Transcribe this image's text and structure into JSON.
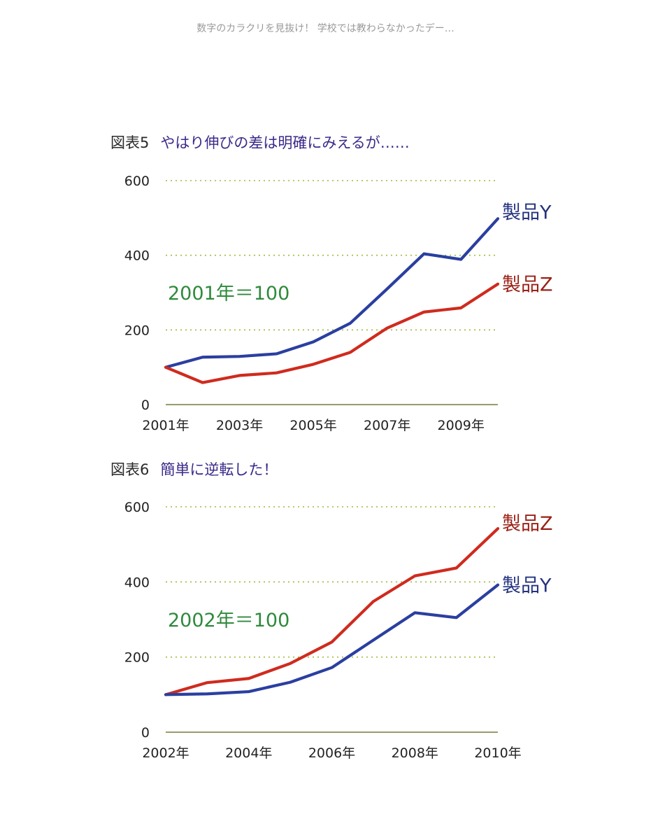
{
  "header": {
    "text": "数字のカラクリを見抜け！ 学校では教わらなかったデー…"
  },
  "chart_data": [
    {
      "type": "line",
      "title_no": "図表5",
      "title": "やはり伸びの差は明確にみえるが……",
      "note": "2001年＝100",
      "x": [
        2001,
        2002,
        2003,
        2004,
        2005,
        2006,
        2007,
        2008,
        2009,
        2010
      ],
      "x_tick_labels": [
        "2001年",
        "2003年",
        "2005年",
        "2007年",
        "2009年"
      ],
      "x_ticks": [
        2001,
        2003,
        2005,
        2007,
        2009
      ],
      "xlim": [
        2001,
        2010
      ],
      "ylim": [
        0,
        600
      ],
      "y_ticks": [
        0,
        200,
        400,
        600
      ],
      "grid": true,
      "series": [
        {
          "name": "製品Y",
          "color": "#2b3fa0",
          "label_color": "#25337f",
          "values": [
            100,
            127,
            129,
            136,
            168,
            218,
            310,
            404,
            389,
            498
          ]
        },
        {
          "name": "製品Z",
          "color": "#cf2b1e",
          "label_color": "#9a2016",
          "values": [
            100,
            59,
            78,
            85,
            108,
            140,
            205,
            248,
            259,
            323
          ]
        }
      ]
    },
    {
      "type": "line",
      "title_no": "図表6",
      "title": "簡単に逆転した！",
      "note": "2002年＝100",
      "x": [
        2002,
        2003,
        2004,
        2005,
        2006,
        2007,
        2008,
        2009,
        2010
      ],
      "x_tick_labels": [
        "2002年",
        "2004年",
        "2006年",
        "2008年",
        "2010年"
      ],
      "x_ticks": [
        2002,
        2004,
        2006,
        2008,
        2010
      ],
      "xlim": [
        2002,
        2010
      ],
      "ylim": [
        0,
        600
      ],
      "y_ticks": [
        0,
        200,
        400,
        600
      ],
      "grid": true,
      "series": [
        {
          "name": "製品Z",
          "color": "#cf2b1e",
          "label_color": "#9a2016",
          "values": [
            100,
            132,
            143,
            183,
            240,
            348,
            416,
            437,
            542
          ]
        },
        {
          "name": "製品Y",
          "color": "#2b3fa0",
          "label_color": "#25337f",
          "values": [
            100,
            102,
            108,
            133,
            172,
            245,
            318,
            305,
            392
          ]
        }
      ]
    }
  ]
}
